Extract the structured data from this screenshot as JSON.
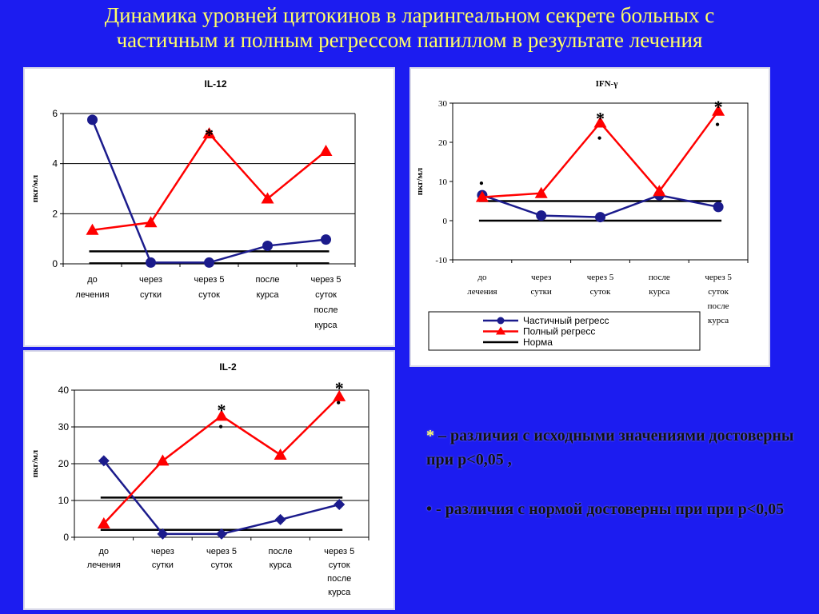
{
  "slide": {
    "title_line1": "Динамика уровней цитокинов в ларингеальном секрете больных с",
    "title_line2": "частичным и полным регрессом папиллом в результате лечения"
  },
  "notes": [
    {
      "symbol": "*",
      "text": " – различия с исходными значениями достоверны при р<0,05 ,"
    },
    {
      "symbol": "•",
      "text": " - различия с нормой достоверны при при р<0,05"
    }
  ],
  "colors": {
    "background": "#1c1cf0",
    "title": "#ffff66",
    "partial": "#1b1b8c",
    "full": "#ff0000",
    "norm": "#000000"
  },
  "chart_data": [
    {
      "id": "il12",
      "type": "line",
      "title": "IL-12",
      "ylabel": "пкг/мл",
      "ylim": [
        0,
        6
      ],
      "yticks": [
        "0",
        "2",
        "4",
        "6"
      ],
      "categories": [
        [
          "до",
          "лечения"
        ],
        [
          "через",
          "сутки"
        ],
        [
          "через 5",
          "суток"
        ],
        [
          "после",
          "курса"
        ],
        [
          "через 5",
          "суток",
          "после",
          "курса"
        ]
      ],
      "grid": true,
      "legend": null,
      "series": [
        {
          "key": "partial",
          "marker": "circle",
          "values": [
            5.75,
            0.05,
            0.05,
            0.72,
            0.97
          ]
        },
        {
          "key": "full",
          "marker": "triangle",
          "values": [
            1.35,
            1.65,
            5.2,
            2.6,
            4.5
          ]
        }
      ],
      "norm_lines": [
        0.5,
        0.02
      ],
      "annotations": [
        {
          "text": "*",
          "x": 2,
          "y": 5.3
        }
      ]
    },
    {
      "id": "ifn",
      "type": "line",
      "title": "IFN-γ",
      "ylabel": "пкг/мл",
      "ylim": [
        -10,
        30
      ],
      "yticks": [
        "-10",
        "0",
        "10",
        "20",
        "30"
      ],
      "categories": [
        [
          "до",
          "лечения"
        ],
        [
          "через",
          "сутки"
        ],
        [
          "через 5",
          "суток"
        ],
        [
          "после",
          "курса"
        ],
        [
          "через 5",
          "суток",
          "после",
          "курса"
        ]
      ],
      "grid": false,
      "legend": {
        "position": "bottom",
        "items": [
          {
            "label": "Частичный регресс",
            "key": "partial",
            "marker": "circle"
          },
          {
            "label": "Полный регресс",
            "key": "full",
            "marker": "triangle"
          },
          {
            "label": "Норма",
            "key": "norm",
            "marker": "none"
          }
        ]
      },
      "series": [
        {
          "key": "partial",
          "marker": "circle",
          "values": [
            6.5,
            1.3,
            0.9,
            6.5,
            3.5
          ]
        },
        {
          "key": "full",
          "marker": "triangle",
          "values": [
            6.0,
            7.0,
            25.0,
            7.5,
            28.0
          ]
        }
      ],
      "norm_lines": [
        5.0,
        0.0
      ],
      "annotations": [
        {
          "text": "*",
          "x": 2,
          "y": 27
        },
        {
          "text": "*",
          "x": 4,
          "y": 30
        },
        {
          "text": "•",
          "x": 0,
          "y": 9.5
        },
        {
          "text": "•",
          "x": 2,
          "y": 21
        },
        {
          "text": "•",
          "x": 4,
          "y": 24.5
        }
      ]
    },
    {
      "id": "il2",
      "type": "line",
      "title": "IL-2",
      "ylabel": "пкг/мл",
      "ylim": [
        0,
        40
      ],
      "yticks": [
        "0",
        "10",
        "20",
        "30",
        "40"
      ],
      "categories": [
        [
          "до",
          "лечения"
        ],
        [
          "через",
          "сутки"
        ],
        [
          "через 5",
          "суток"
        ],
        [
          "после",
          "курса"
        ],
        [
          "через 5",
          "суток",
          "после",
          "курса"
        ]
      ],
      "grid": true,
      "legend": null,
      "series": [
        {
          "key": "partial",
          "marker": "diamond",
          "values": [
            20.8,
            0.9,
            0.9,
            4.8,
            8.9
          ]
        },
        {
          "key": "full",
          "marker": "triangle",
          "values": [
            3.7,
            20.8,
            33.0,
            22.4,
            38.3
          ]
        }
      ],
      "norm_lines": [
        10.8,
        2.0
      ],
      "annotations": [
        {
          "text": "*",
          "x": 2,
          "y": 35.5
        },
        {
          "text": "*",
          "x": 4,
          "y": 41.5
        },
        {
          "text": "•",
          "x": 2,
          "y": 30
        },
        {
          "text": "•",
          "x": 4,
          "y": 36.5
        }
      ]
    }
  ]
}
